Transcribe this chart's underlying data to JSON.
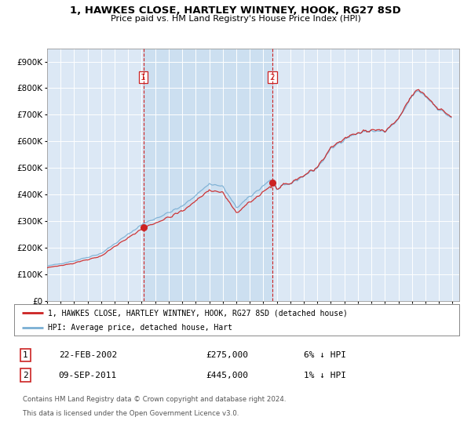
{
  "title": "1, HAWKES CLOSE, HARTLEY WINTNEY, HOOK, RG27 8SD",
  "subtitle": "Price paid vs. HM Land Registry's House Price Index (HPI)",
  "legend_line1": "1, HAWKES CLOSE, HARTLEY WINTNEY, HOOK, RG27 8SD (detached house)",
  "legend_line2": "HPI: Average price, detached house, Hart",
  "transaction1_label": "1",
  "transaction1_date": "22-FEB-2002",
  "transaction1_price": "£275,000",
  "transaction1_hpi": "6% ↓ HPI",
  "transaction2_label": "2",
  "transaction2_date": "09-SEP-2011",
  "transaction2_price": "£445,000",
  "transaction2_hpi": "1% ↓ HPI",
  "footer": "Contains HM Land Registry data © Crown copyright and database right 2024.\nThis data is licensed under the Open Government Licence v3.0.",
  "hpi_color": "#7aafd4",
  "price_color": "#cc2222",
  "bg_color": "#dce8f5",
  "highlight_bg": "#ccdff0",
  "ylim": [
    0,
    950000
  ],
  "yticks": [
    0,
    100000,
    200000,
    300000,
    400000,
    500000,
    600000,
    700000,
    800000,
    900000
  ],
  "vline1_x": 2002.12,
  "vline2_x": 2011.67,
  "t1_x": 2002.12,
  "t1_y": 275000,
  "t2_x": 2011.67,
  "t2_y": 445000,
  "xlim_left": 1995.0,
  "xlim_right": 2025.5
}
